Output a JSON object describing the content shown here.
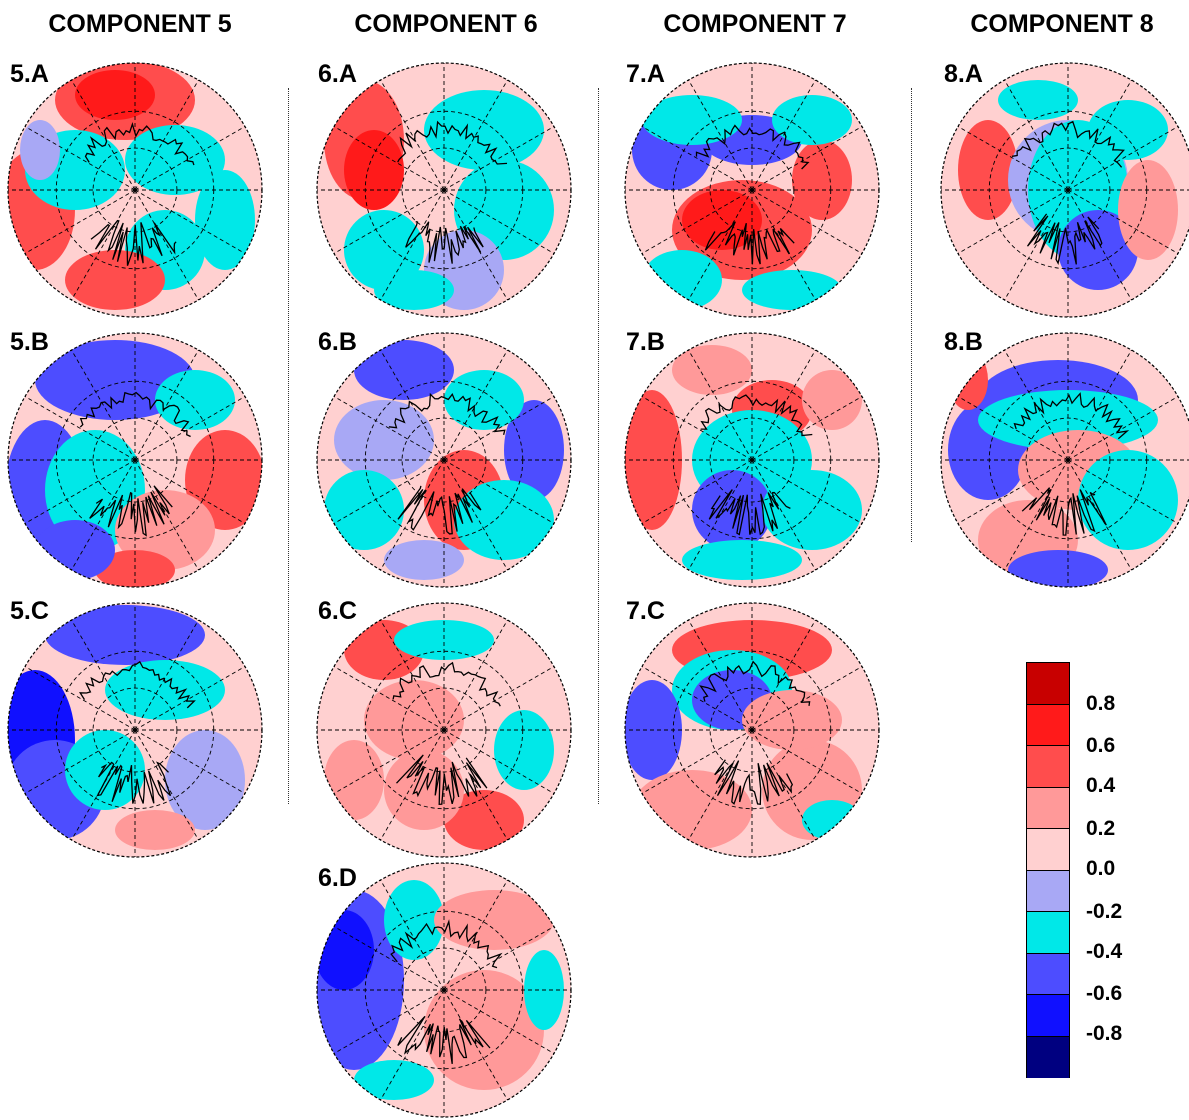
{
  "columns": [
    "COMPONENT 5",
    "COMPONENT 6",
    "COMPONENT 7",
    "COMPONENT 8"
  ],
  "panels": [
    "5.A",
    "5.B",
    "5.C",
    "6.A",
    "6.B",
    "6.C",
    "6.D",
    "7.A",
    "7.B",
    "7.C",
    "8.A",
    "8.B"
  ],
  "colorbar": {
    "colors": [
      "#c80000",
      "#ff1a1a",
      "#ff4d4d",
      "#ff9999",
      "#ffd0d0",
      "#a8a8f5",
      "#00e8e8",
      "#4d4dff",
      "#1010ff",
      "#000080"
    ],
    "ticks": [
      "0.8",
      "0.6",
      "0.4",
      "0.2",
      "0.0",
      "-0.2",
      "-0.4",
      "-0.6",
      "-0.8"
    ]
  }
}
